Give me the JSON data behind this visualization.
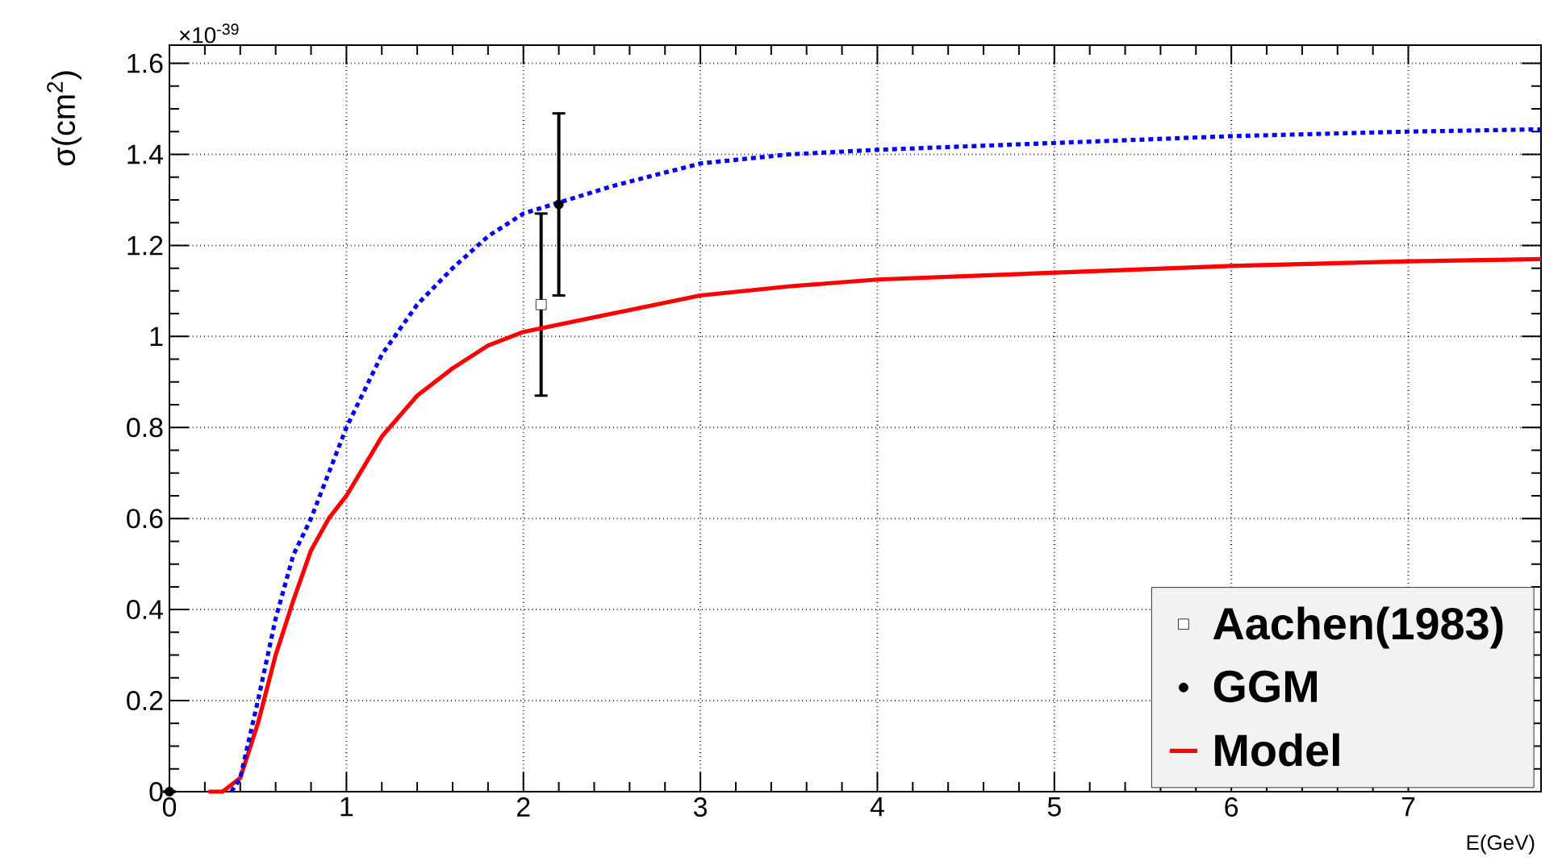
{
  "chart_data": {
    "type": "line",
    "xlabel": "E(GeV)",
    "ylabel": "σ(cm$^{2}$)",
    "annotations": [
      "×10$^{-39}$"
    ],
    "xlim": [
      0,
      7.75
    ],
    "ylim": [
      0,
      1.64
    ],
    "xticks": [
      0,
      1,
      2,
      3,
      4,
      5,
      6,
      7
    ],
    "yticks": [
      0,
      {
        "value": 0.2,
        "label": "0.2"
      },
      {
        "value": 0.4,
        "label": "0.4"
      },
      {
        "value": 0.6,
        "label": "0.6"
      },
      {
        "value": 0.8,
        "label": "0.8"
      },
      1,
      {
        "value": 1.2,
        "label": "1.2"
      },
      {
        "value": 1.4,
        "label": "1.4"
      },
      {
        "value": 1.6,
        "label": "1.6"
      }
    ],
    "grid": true,
    "legend": "bottom right",
    "series": [
      {
        "name": "Aachen(1983)",
        "type": "scatter",
        "marker": "square",
        "color": "#000000",
        "x": [
          2.1
        ],
        "values": [
          1.07
        ],
        "errors": [
          0.2
        ]
      },
      {
        "name": "GGM",
        "type": "scatter",
        "marker": "circle",
        "color": "#000000",
        "x": [
          0,
          2.2
        ],
        "values": [
          0,
          1.29
        ],
        "errors": [
          null,
          0.2
        ]
      },
      {
        "name": "Model",
        "line_style": "solid",
        "color": "#ff0000",
        "x": [
          0.22,
          0.3,
          0.4,
          0.5,
          0.6,
          0.7,
          0.8,
          0.9,
          1.0,
          1.2,
          1.4,
          1.6,
          1.8,
          2.0,
          2.5,
          3.0,
          3.5,
          4.0,
          5.0,
          6.0,
          7.0,
          7.75
        ],
        "values": [
          0,
          0,
          0.03,
          0.15,
          0.3,
          0.42,
          0.53,
          0.6,
          0.65,
          0.78,
          0.87,
          0.93,
          0.98,
          1.01,
          1.05,
          1.09,
          1.11,
          1.125,
          1.14,
          1.155,
          1.165,
          1.17
        ]
      },
      {
        "line_style": "dotted",
        "color": "#0000ff",
        "x": [
          0.35,
          0.4,
          0.5,
          0.6,
          0.7,
          0.8,
          0.9,
          1.0,
          1.2,
          1.4,
          1.6,
          1.8,
          2.0,
          2.5,
          3.0,
          3.5,
          4.0,
          5.0,
          6.0,
          7.0,
          7.75
        ],
        "values": [
          0,
          0.03,
          0.2,
          0.38,
          0.52,
          0.6,
          0.7,
          0.8,
          0.96,
          1.07,
          1.15,
          1.22,
          1.27,
          1.33,
          1.38,
          1.4,
          1.41,
          1.425,
          1.44,
          1.45,
          1.455
        ]
      }
    ]
  }
}
